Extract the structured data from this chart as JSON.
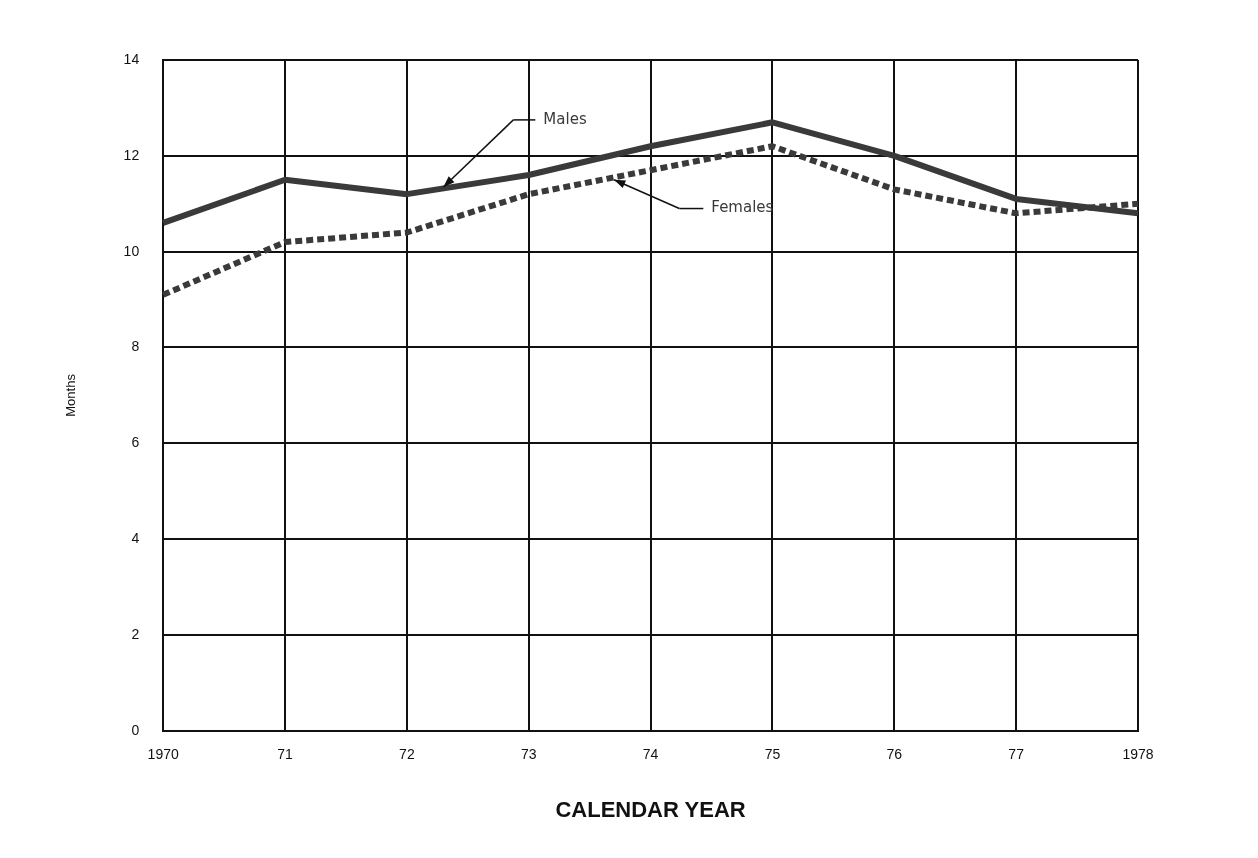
{
  "chart_data": {
    "type": "line",
    "xlabel": "CALENDAR YEAR",
    "ylabel": "Months",
    "categories": [
      "1970",
      "71",
      "72",
      "73",
      "74",
      "75",
      "76",
      "77",
      "1978"
    ],
    "series": [
      {
        "name": "Males",
        "color": "#3a3a3a",
        "line_style": "solid",
        "values": [
          10.6,
          11.5,
          11.2,
          11.6,
          12.2,
          12.7,
          12.0,
          11.1,
          10.8
        ]
      },
      {
        "name": "Females",
        "color": "#3a3a3a",
        "line_style": "dotted",
        "values": [
          9.1,
          10.2,
          10.4,
          11.2,
          11.7,
          12.2,
          11.3,
          10.8,
          11.0
        ]
      }
    ],
    "ylim": [
      0,
      14
    ],
    "yticks": [
      0,
      2,
      4,
      6,
      8,
      10,
      12,
      14
    ],
    "grid": true,
    "legend": false,
    "marker": "none"
  }
}
